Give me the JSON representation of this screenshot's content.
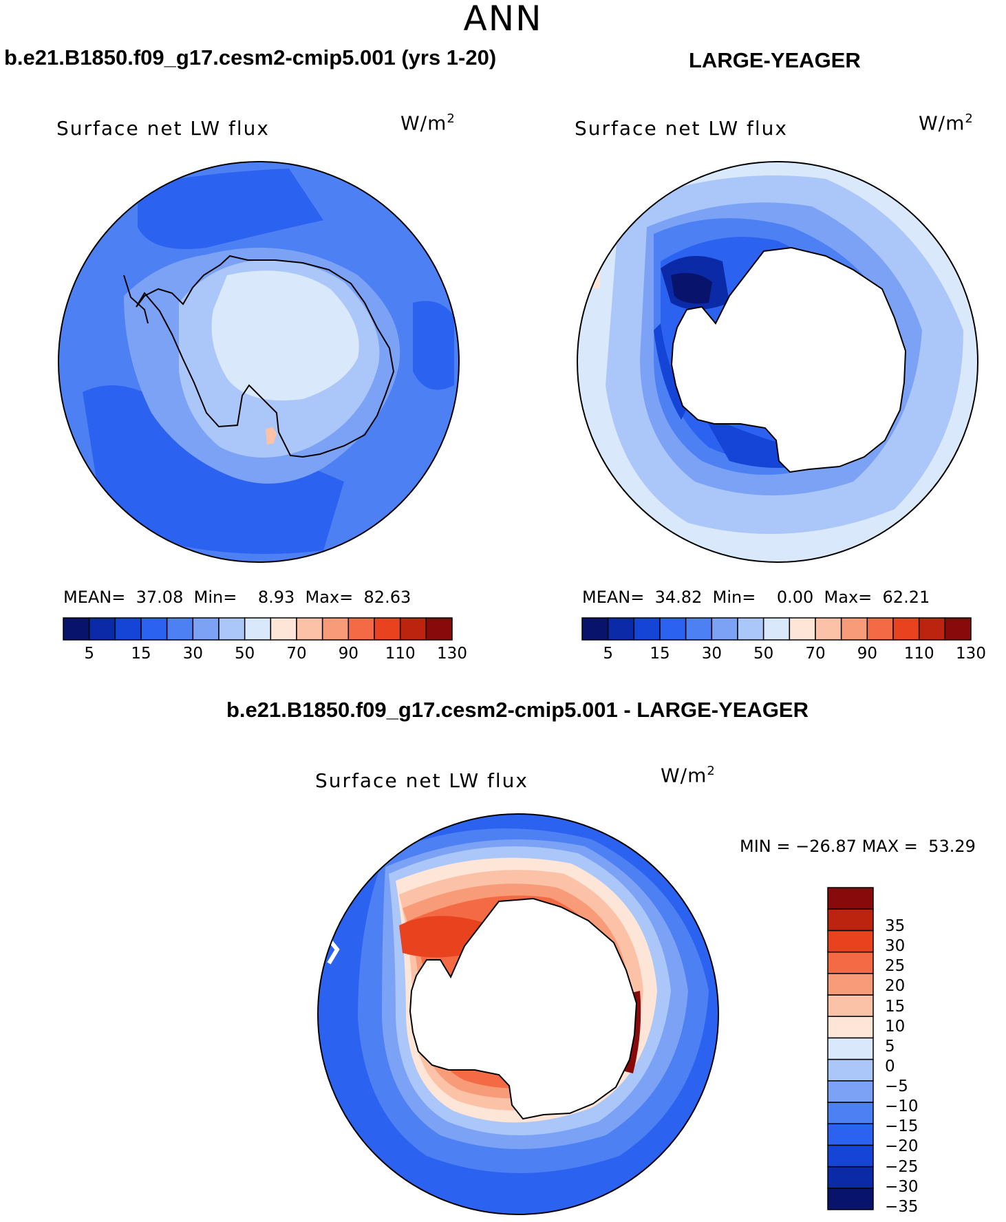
{
  "season": "ANN",
  "panels": [
    {
      "title": "b.e21.B1850.f09_g17.cesm2-cmip5.001 (yrs 1-20)",
      "variable": "Surface net LW flux",
      "units_base": "W/m",
      "units_exp": "2",
      "stats": {
        "mean_label": "MEAN=",
        "mean": "37.08",
        "min_label": "Min=",
        "min": "8.93",
        "max_label": "Max=",
        "max": "82.63"
      }
    },
    {
      "title": "LARGE-YEAGER",
      "variable": "Surface net LW flux",
      "units_base": "W/m",
      "units_exp": "2",
      "stats": {
        "mean_label": "MEAN=",
        "mean": "34.82",
        "min_label": "Min=",
        "min": "0.00",
        "max_label": "Max=",
        "max": "62.21"
      }
    },
    {
      "title": "b.e21.B1850.f09_g17.cesm2-cmip5.001 - LARGE-YEAGER",
      "variable": "Surface net LW flux",
      "units_base": "W/m",
      "units_exp": "2",
      "stats": {
        "min_label": "MIN =",
        "min": "−26.87",
        "max_label": "MAX =",
        "max": "53.29"
      }
    }
  ],
  "colorbar_main": {
    "colors": [
      "#08136b",
      "#0a2aa8",
      "#1545d6",
      "#2c62f0",
      "#4d80f2",
      "#7ba2f5",
      "#abc6f8",
      "#d9e9fb",
      "#fde6d8",
      "#fbc2a8",
      "#f89b78",
      "#f46a44",
      "#e8421f",
      "#bc2410",
      "#880a0a"
    ],
    "tick_labels": [
      "5",
      "15",
      "30",
      "50",
      "70",
      "90",
      "110",
      "130"
    ]
  },
  "colorbar_diff": {
    "colors": [
      "#08136b",
      "#0a2aa8",
      "#1545d6",
      "#2c62f0",
      "#4d80f2",
      "#7ba2f5",
      "#abc6f8",
      "#d9e9fb",
      "#fde6d8",
      "#fbc2a8",
      "#f89b78",
      "#f46a44",
      "#e8421f",
      "#bc2410",
      "#880a0a"
    ],
    "tick_labels": [
      "35",
      "30",
      "25",
      "20",
      "15",
      "10",
      "5",
      "0",
      "−5",
      "−10",
      "−15",
      "−20",
      "−25",
      "−30",
      "−35"
    ]
  }
}
